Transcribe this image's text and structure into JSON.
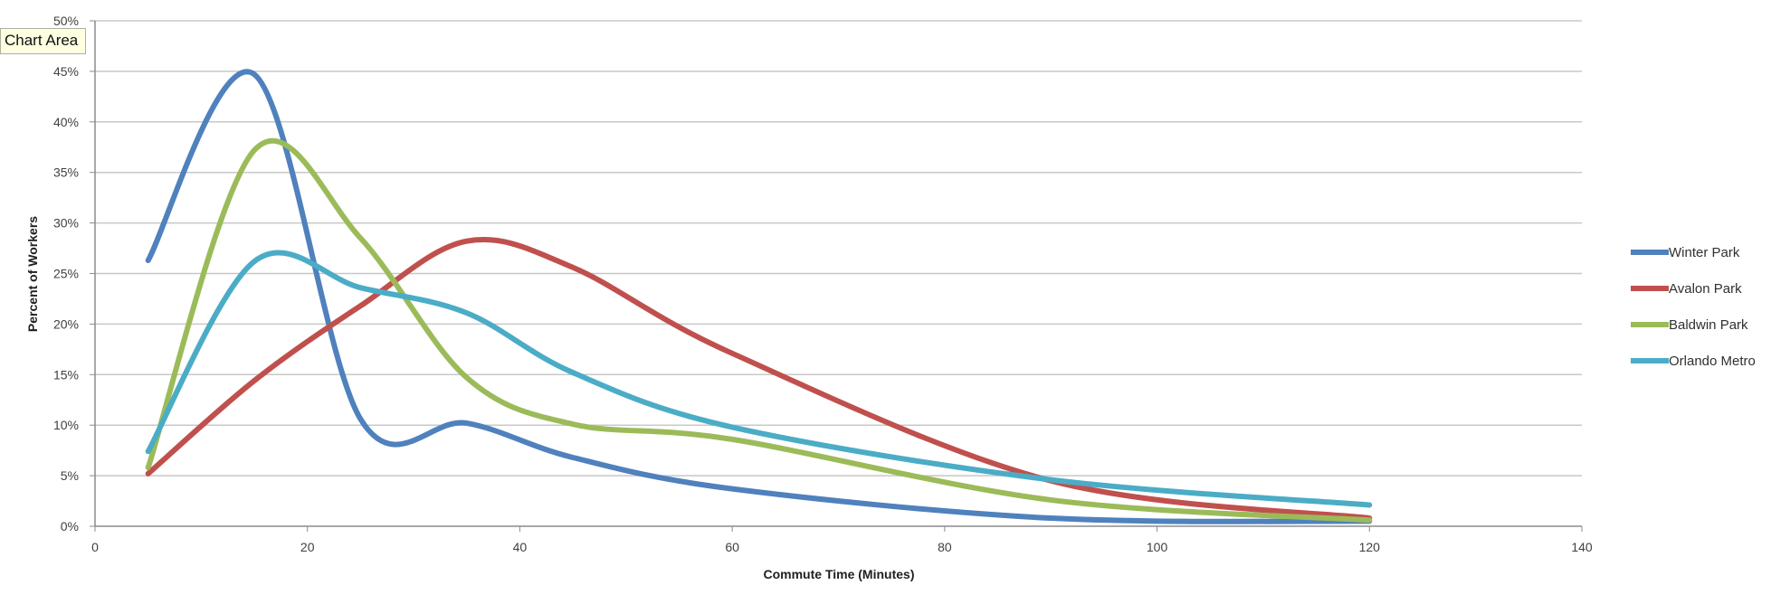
{
  "tooltip": "Chart Area",
  "chart_data": {
    "type": "line",
    "title": "",
    "xlabel": "Commute Time (Minutes)",
    "ylabel": "Percent of Workers",
    "xlim": [
      0,
      140
    ],
    "ylim": [
      0,
      50
    ],
    "x_ticks": [
      "0",
      "20",
      "40",
      "60",
      "80",
      "100",
      "120",
      "140"
    ],
    "y_ticks": [
      "0%",
      "5%",
      "10%",
      "15%",
      "20%",
      "25%",
      "30%",
      "35%",
      "40%",
      "45%",
      "50%"
    ],
    "grid": "horizontal",
    "legend_position": "right",
    "smooth": true,
    "x": [
      5,
      15,
      25,
      35,
      45,
      60,
      90,
      120
    ],
    "series": [
      {
        "name": "Winter Park",
        "color": "#4f81bd",
        "values": [
          26.3,
          44.7,
          10.6,
          10.2,
          6.8,
          3.7,
          0.8,
          0.5
        ]
      },
      {
        "name": "Avalon Park",
        "color": "#c0504d",
        "values": [
          5.2,
          14.4,
          21.8,
          28.2,
          25.6,
          17.1,
          4.5,
          0.8
        ]
      },
      {
        "name": "Baldwin Park",
        "color": "#9bbb59",
        "values": [
          5.8,
          37.2,
          28.5,
          14.7,
          10.1,
          8.6,
          2.6,
          0.6
        ]
      },
      {
        "name": "Orlando Metro",
        "color": "#4bacc6",
        "values": [
          7.4,
          26.2,
          23.6,
          21.1,
          15.2,
          9.8,
          4.6,
          2.1
        ]
      }
    ]
  }
}
